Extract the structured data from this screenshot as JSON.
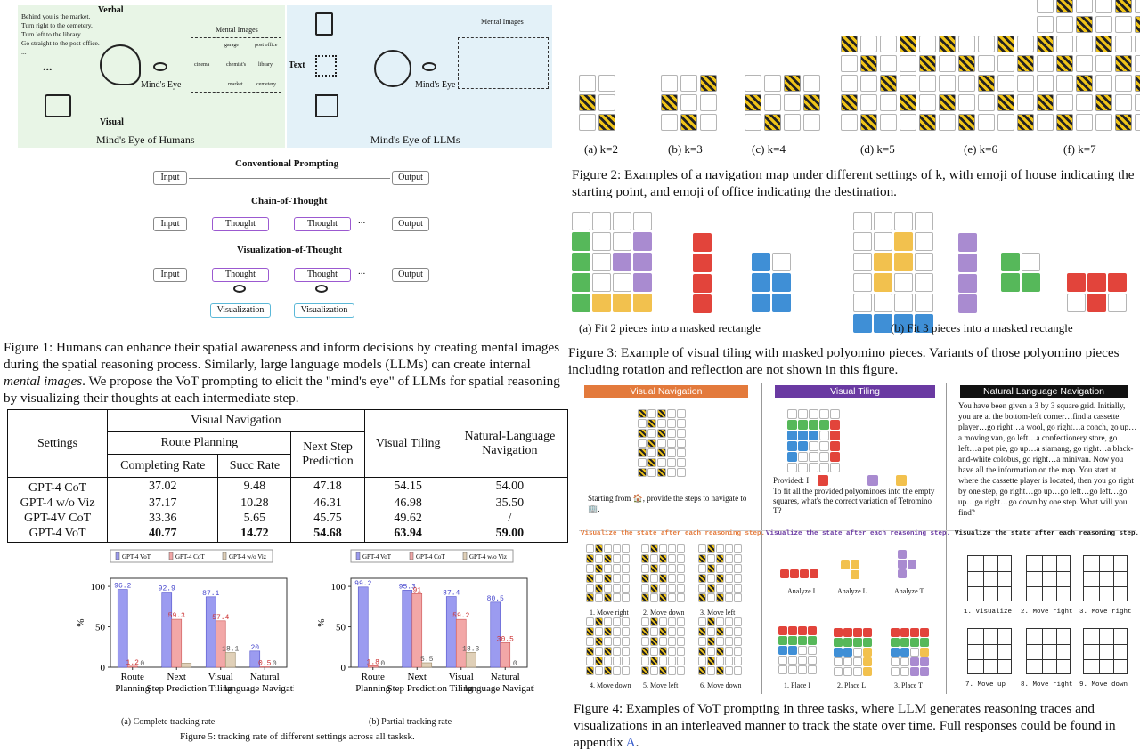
{
  "fig1": {
    "humans_text": [
      "Behind you is the market.",
      "Turn right to the cemetery.",
      "Turn left to the library.",
      "Go straight to the post office.",
      "..."
    ],
    "verbal": "Verbal",
    "visual": "Visual",
    "ellipsis": "...",
    "mental_images": "Mental Images",
    "map_labels": [
      "garage",
      "post office",
      "cinema",
      "chemist's",
      "library",
      "market",
      "cemetery"
    ],
    "minds_eye": "Mind's Eye",
    "panel_humans": "Mind's Eye of Humans",
    "panel_llms": "Mind's Eye of LLMs",
    "text_label": "Text",
    "mental_images_llm": "Mental Images",
    "minds_eye_llm": "Mind's Eye",
    "conventional": "Conventional Prompting",
    "cot": "Chain-of-Thought",
    "vot": "Visualization-of-Thought",
    "input": "Input",
    "output": "Output",
    "thought": "Thought",
    "visualization": "Visualization",
    "caption": "Figure 1: Humans can enhance their spatial awareness and inform decisions by creating mental images during the spatial reasoning process. Similarly, large language models (LLMs) can create internal",
    "caption_em": "mental images",
    "caption_end": ". We propose the VoT prompting to elicit the \"mind's eye\" of LLMs for spatial reasoning by visualizing their thoughts at each intermediate step."
  },
  "table": {
    "settings": "Settings",
    "visual_navigation": "Visual Navigation",
    "route_planning": "Route Planning",
    "next_step": "Next Step Prediction",
    "visual_tiling": "Visual Tiling",
    "natural_language": "Natural-Language Navigation",
    "completing_rate": "Completing Rate",
    "succ_rate": "Succ Rate",
    "rows": [
      [
        "GPT-4 CoT",
        "37.02",
        "9.48",
        "47.18",
        "54.15",
        "54.00"
      ],
      [
        "GPT-4 w/o Viz",
        "37.17",
        "10.28",
        "46.31",
        "46.98",
        "35.50"
      ],
      [
        "GPT-4V CoT",
        "33.36",
        "5.65",
        "45.75",
        "49.62",
        "/"
      ],
      [
        "GPT-4 VoT",
        "40.77",
        "14.72",
        "54.68",
        "63.94",
        "59.00"
      ]
    ]
  },
  "fig2": {
    "labels": [
      "(a) k=2",
      "(b) k=3",
      "(c) k=4",
      "(d) k=5",
      "(e) k=6",
      "(f) k=7"
    ],
    "caption": "Figure 2: Examples of a navigation map under different settings of k, with emoji of house indicating the starting point, and emoji of office indicating the destination."
  },
  "fig3": {
    "label_a": "(a) Fit 2 pieces into a masked rectangle",
    "label_b": "(b) Fit 3 pieces into a masked rectangle",
    "caption": "Figure 3: Example of visual tiling with masked polyomino pieces. Variants of those polyomino pieces including rotation and reflection are not shown in this figure."
  },
  "fig4": {
    "head_nav": "Visual Navigation",
    "head_tiling": "Visual Tiling",
    "head_nl": "Natural Language Navigation",
    "nav_prompt": "Starting from 🏠, provide the steps to navigate to 🏢.",
    "tiling_provided": "Provided: I",
    "tiling_prompt": "To fit all the provided polyominoes into the empty squares, what's the correct variation of Tetromino T?",
    "nl_text": "You have been given a 3 by 3 square grid. Initially, you are at the bottom-left corner…find a cassette player…go right…a wool, go right…a conch, go up…a moving van, go left…a confectionery store, go left…a pot pie, go up…a siamang, go right…a black-and-white colobus, go right…a minivan. Now you have all the information on the map. You start at where the cassette player is located, then you go right by one step, go right…go up…go left…go left…go up…go right…go down by one step. What will you find?",
    "visualize_state": "Visualize the state after each reasoning step.",
    "nav_steps": [
      "1. Move right",
      "2. Move down",
      "3. Move left",
      "4. Move down",
      "5. Move left",
      "6. Move down"
    ],
    "tiling_analyze": [
      "Analyze I",
      "Analyze L",
      "Analyze T"
    ],
    "tiling_place": [
      "1. Place I",
      "2. Place L",
      "3. Place T"
    ],
    "nl_steps": [
      "1. Visualize",
      "2. Move right",
      "3. Move right",
      "7. Move up",
      "8. Move right",
      "9. Move down"
    ],
    "caption": "Figure 4: Examples of VoT prompting in three tasks, where LLM generates reasoning traces and visualizations in an interleaved manner to track the state over time. Full responses could be found in appendix",
    "caption_link": "A",
    "caption_end": "."
  },
  "fig5": {
    "legend": [
      "GPT-4 VoT",
      "GPT-4 CoT",
      "GPT-4 w/o Viz"
    ],
    "colors": [
      "#9b9bf0",
      "#f2a7a7",
      "#e0d0b8"
    ],
    "ylabel": "%",
    "yticks": [
      "0",
      "50",
      "100"
    ],
    "label_a": "(a) Complete tracking rate",
    "label_b": "(b) Partial tracking rate",
    "caption": "Figure 5: tracking rate of different settings across all tasksk."
  },
  "chart_data": [
    {
      "type": "bar",
      "title": "",
      "categories": [
        "Route Planning",
        "Next Step Prediction",
        "Visual Tiling",
        "Natural language Navigation"
      ],
      "series": [
        {
          "name": "GPT-4 VoT",
          "values": [
            96.2,
            92.9,
            87.1,
            20
          ]
        },
        {
          "name": "GPT-4 CoT",
          "values": [
            1.2,
            59.3,
            57.4,
            0.5
          ]
        },
        {
          "name": "GPT-4 w/o Viz",
          "values": [
            0,
            5,
            18.1,
            0
          ]
        }
      ],
      "labels": [
        [
          "96.2",
          "92.9",
          "87.1",
          "20"
        ],
        [
          "1.2",
          "59.3",
          "57.4",
          "0.5"
        ],
        [
          "0",
          "",
          "18.1",
          "0"
        ]
      ],
      "ylabel": "%",
      "ylim": [
        0,
        110
      ],
      "legend": "top"
    },
    {
      "type": "bar",
      "title": "",
      "categories": [
        "Route Planning",
        "Next Step Prediction",
        "Visual Tiling",
        "Natural language Navigation"
      ],
      "series": [
        {
          "name": "GPT-4 VoT",
          "values": [
            99.2,
            95.3,
            87.4,
            80.5
          ]
        },
        {
          "name": "GPT-4 CoT",
          "values": [
            1.8,
            91,
            59.2,
            30.5
          ]
        },
        {
          "name": "GPT-4 w/o Viz",
          "values": [
            0,
            5.5,
            18.3,
            0
          ]
        }
      ],
      "labels": [
        [
          "99.2",
          "95.3",
          "87.4",
          "80.5"
        ],
        [
          "1.8",
          "91",
          "59.2",
          "30.5"
        ],
        [
          "0",
          "5.5",
          "18.3",
          "0"
        ]
      ],
      "ylabel": "%",
      "ylim": [
        0,
        110
      ],
      "legend": "top"
    }
  ]
}
